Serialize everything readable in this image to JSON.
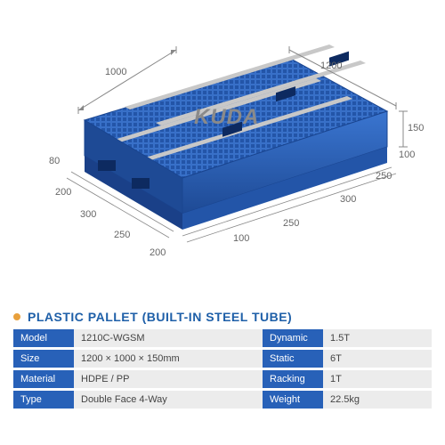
{
  "brand": "KUDA",
  "title": "PLASTIC PALLET (BUILT-IN STEEL TUBE)",
  "title_color": "#1e5fa8",
  "bullet_color": "#e8a03c",
  "pallet_color": "#2861b8",
  "pallet_highlight": "#5a8fd8",
  "pallet_shadow": "#1a4590",
  "label_bg": "#2861b8",
  "value_bg": "#ececec",
  "dimensions": {
    "top_width": "1000",
    "top_length": "1200",
    "height_right": "150",
    "base_height": "80",
    "notch_right1": "100",
    "notch_right2": "250",
    "notch_right3": "300",
    "left_200a": "200",
    "left_300": "300",
    "left_250": "250",
    "left_200b": "200",
    "right_250": "250",
    "right_100": "100"
  },
  "specs_left": [
    {
      "label": "Model",
      "value": "1210C-WGSM"
    },
    {
      "label": "Size",
      "value": "1200 × 1000 × 150mm"
    },
    {
      "label": "Material",
      "value": "HDPE / PP"
    },
    {
      "label": "Type",
      "value": "Double Face 4-Way"
    }
  ],
  "specs_right": [
    {
      "label": "Dynamic",
      "value": "1.5T"
    },
    {
      "label": "Static",
      "value": "6T"
    },
    {
      "label": "Racking",
      "value": "1T"
    },
    {
      "label": "Weight",
      "value": "22.5kg"
    }
  ]
}
